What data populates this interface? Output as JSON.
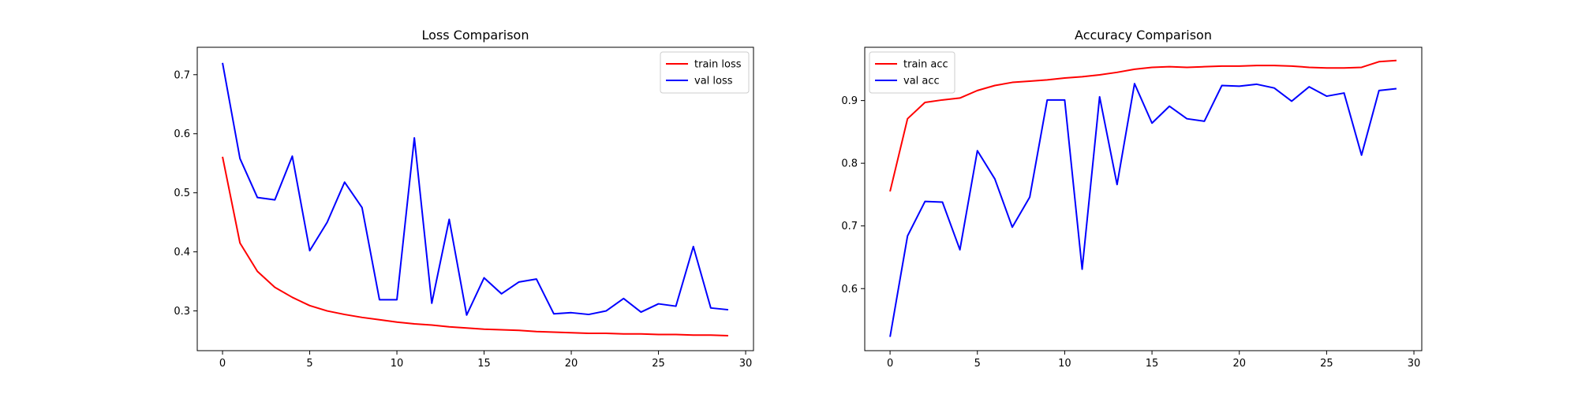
{
  "chart_data": [
    {
      "type": "line",
      "title": "Loss Comparison",
      "xlabel": "",
      "ylabel": "",
      "xlim": [
        -1.45,
        30.45
      ],
      "ylim": [
        0.2327,
        0.7464
      ],
      "xticks": [
        0,
        5,
        10,
        15,
        20,
        25,
        30
      ],
      "yticks": [
        0.3,
        0.4,
        0.5,
        0.6,
        0.7
      ],
      "ytick_labels": [
        "0.3",
        "0.4",
        "0.5",
        "0.6",
        "0.7"
      ],
      "grid": false,
      "legend_position": "top-right",
      "series": [
        {
          "name": "train loss",
          "color": "#ff0000",
          "x": [
            0,
            1,
            2,
            3,
            4,
            5,
            6,
            7,
            8,
            9,
            10,
            11,
            12,
            13,
            14,
            15,
            16,
            17,
            18,
            19,
            20,
            21,
            22,
            23,
            24,
            25,
            26,
            27,
            28,
            29
          ],
          "values": [
            0.561,
            0.415,
            0.367,
            0.34,
            0.323,
            0.309,
            0.3,
            0.294,
            0.289,
            0.285,
            0.281,
            0.278,
            0.276,
            0.273,
            0.271,
            0.269,
            0.268,
            0.267,
            0.265,
            0.264,
            0.263,
            0.262,
            0.262,
            0.261,
            0.261,
            0.26,
            0.26,
            0.259,
            0.259,
            0.258
          ]
        },
        {
          "name": "val loss",
          "color": "#0000ff",
          "x": [
            0,
            1,
            2,
            3,
            4,
            5,
            6,
            7,
            8,
            9,
            10,
            11,
            12,
            13,
            14,
            15,
            16,
            17,
            18,
            19,
            20,
            21,
            22,
            23,
            24,
            25,
            26,
            27,
            28,
            29
          ],
          "values": [
            0.72,
            0.558,
            0.492,
            0.488,
            0.562,
            0.402,
            0.45,
            0.518,
            0.475,
            0.319,
            0.319,
            0.593,
            0.313,
            0.455,
            0.293,
            0.356,
            0.329,
            0.349,
            0.354,
            0.295,
            0.297,
            0.294,
            0.3,
            0.321,
            0.298,
            0.312,
            0.308,
            0.409,
            0.305,
            0.302
          ]
        }
      ]
    },
    {
      "type": "line",
      "title": "Accuracy Comparison",
      "xlabel": "",
      "ylabel": "",
      "xlim": [
        -1.45,
        30.45
      ],
      "ylim": [
        0.501,
        0.985
      ],
      "xticks": [
        0,
        5,
        10,
        15,
        20,
        25,
        30
      ],
      "yticks": [
        0.6,
        0.7,
        0.8,
        0.9
      ],
      "ytick_labels": [
        "0.6",
        "0.7",
        "0.8",
        "0.9"
      ],
      "grid": false,
      "legend_position": "top-left",
      "series": [
        {
          "name": "train acc",
          "color": "#ff0000",
          "x": [
            0,
            1,
            2,
            3,
            4,
            5,
            6,
            7,
            8,
            9,
            10,
            11,
            12,
            13,
            14,
            15,
            16,
            17,
            18,
            19,
            20,
            21,
            22,
            23,
            24,
            25,
            26,
            27,
            28,
            29
          ],
          "values": [
            0.755,
            0.871,
            0.897,
            0.901,
            0.904,
            0.916,
            0.924,
            0.929,
            0.931,
            0.933,
            0.936,
            0.938,
            0.941,
            0.945,
            0.95,
            0.953,
            0.954,
            0.953,
            0.954,
            0.955,
            0.955,
            0.956,
            0.956,
            0.955,
            0.953,
            0.952,
            0.952,
            0.953,
            0.962,
            0.964
          ]
        },
        {
          "name": "val acc",
          "color": "#0000ff",
          "x": [
            0,
            1,
            2,
            3,
            4,
            5,
            6,
            7,
            8,
            9,
            10,
            11,
            12,
            13,
            14,
            15,
            16,
            17,
            18,
            19,
            20,
            21,
            22,
            23,
            24,
            25,
            26,
            27,
            28,
            29
          ],
          "values": [
            0.523,
            0.684,
            0.739,
            0.738,
            0.662,
            0.82,
            0.775,
            0.698,
            0.746,
            0.901,
            0.901,
            0.631,
            0.906,
            0.766,
            0.927,
            0.864,
            0.891,
            0.871,
            0.867,
            0.924,
            0.923,
            0.926,
            0.92,
            0.899,
            0.922,
            0.907,
            0.912,
            0.813,
            0.916,
            0.919
          ]
        }
      ]
    }
  ]
}
